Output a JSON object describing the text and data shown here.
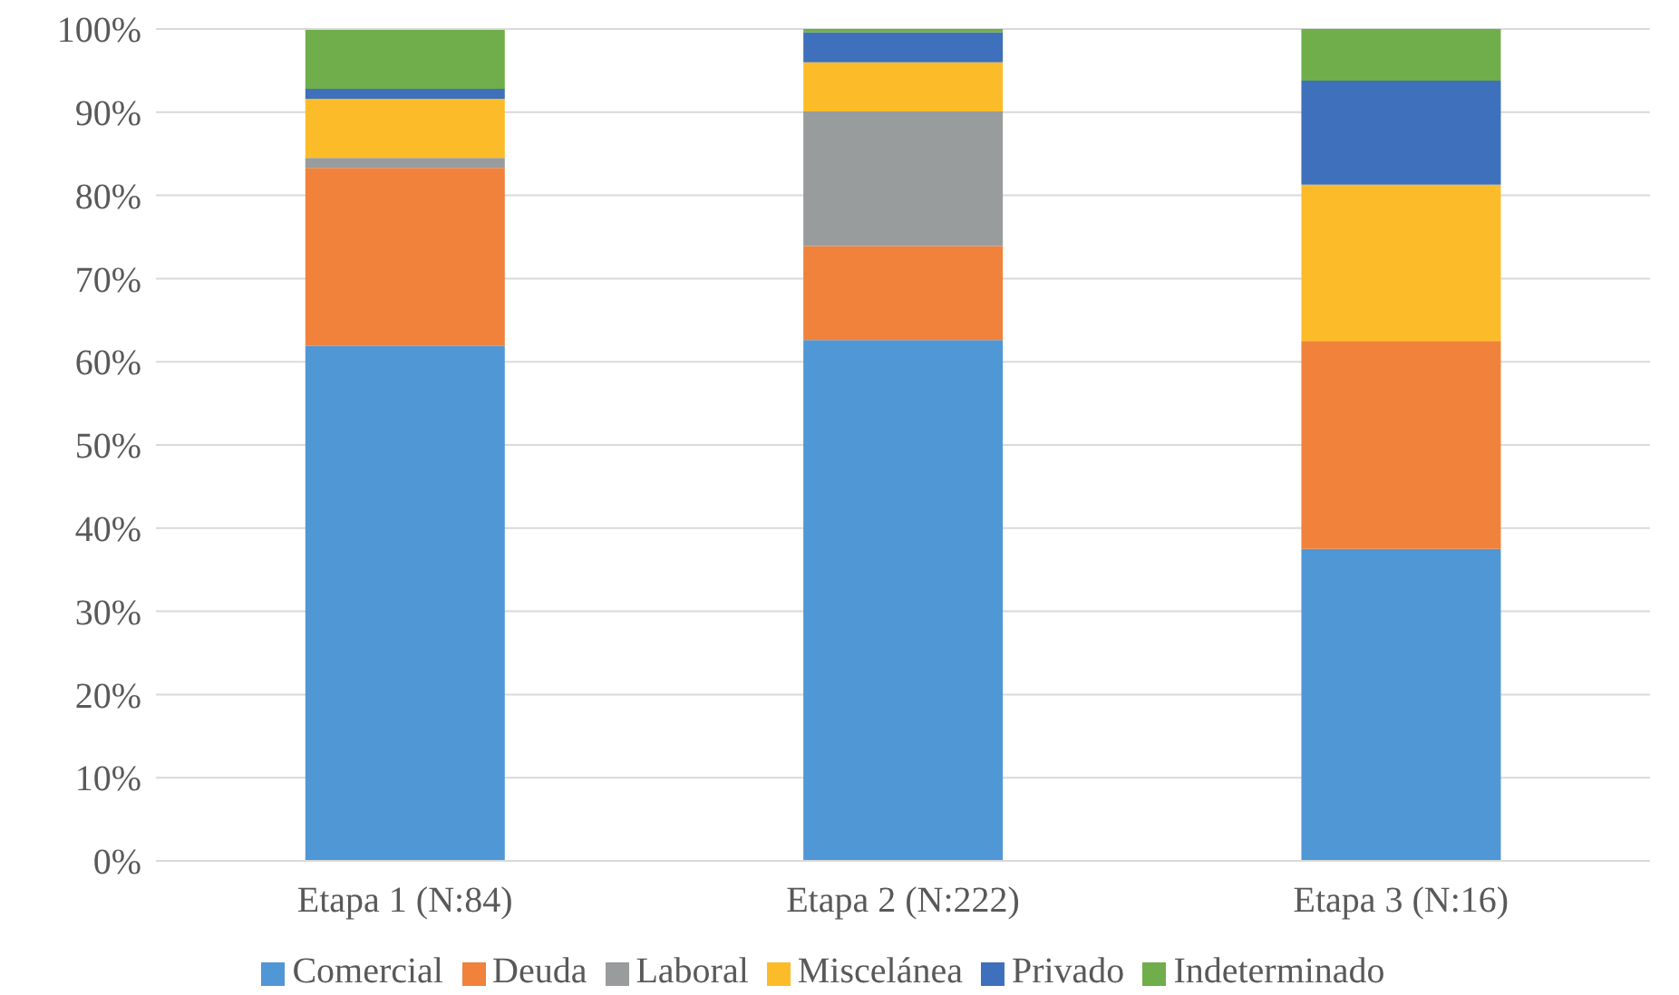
{
  "chart_data": {
    "type": "bar",
    "stacked": true,
    "categories": [
      "Etapa 1 (N:84)",
      "Etapa 2 (N:222)",
      "Etapa 3 (N:16)"
    ],
    "series": [
      {
        "name": "Comercial",
        "color": "#5097d5",
        "values": [
          61.9,
          62.6,
          37.5
        ]
      },
      {
        "name": "Deuda",
        "color": "#f0823b",
        "values": [
          21.4,
          11.3,
          25.0
        ]
      },
      {
        "name": "Laboral",
        "color": "#999c9c",
        "values": [
          1.2,
          16.2,
          0
        ]
      },
      {
        "name": "Miscelánea",
        "color": "#fcbc29",
        "values": [
          7.1,
          5.9,
          18.8
        ]
      },
      {
        "name": "Privado",
        "color": "#3f70bb",
        "values": [
          1.2,
          3.6,
          12.5
        ]
      },
      {
        "name": "Indeterminado",
        "color": "#6fae4b",
        "values": [
          7.1,
          0.5,
          6.2
        ]
      }
    ],
    "ylim": [
      0,
      100
    ],
    "yticks": [
      {
        "value": 0,
        "label": "0%"
      },
      {
        "value": 10,
        "label": "10%"
      },
      {
        "value": 20,
        "label": "20%"
      },
      {
        "value": 30,
        "label": "30%"
      },
      {
        "value": 40,
        "label": "40%"
      },
      {
        "value": 50,
        "label": "50%"
      },
      {
        "value": 60,
        "label": "60%"
      },
      {
        "value": 70,
        "label": "70%"
      },
      {
        "value": 80,
        "label": "80%"
      },
      {
        "value": 90,
        "label": "90%"
      },
      {
        "value": 100,
        "label": "100%"
      }
    ],
    "grid": "y",
    "legend": "bottom"
  }
}
